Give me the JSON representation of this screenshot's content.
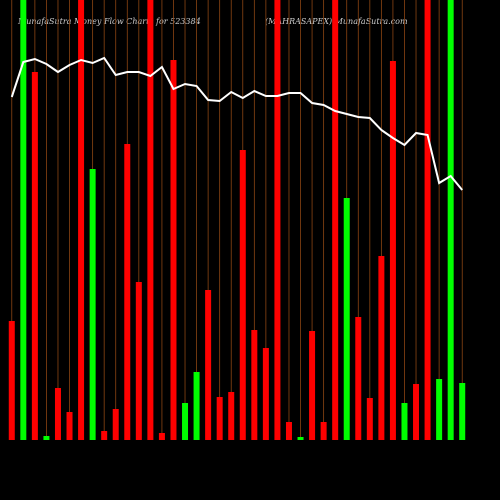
{
  "chart_data": {
    "type": "bar",
    "title": "MunafaSutra  Money Flow  Charts for 523384",
    "subtitle": "(MAHRASAPEX) MunafaSutra.com",
    "categories": [
      null,
      null,
      null,
      null,
      null,
      null,
      null,
      null,
      null,
      null,
      null,
      null,
      null,
      null,
      null,
      null,
      null,
      null,
      null,
      null,
      null,
      null,
      null,
      null,
      null,
      null,
      null,
      null,
      null,
      null,
      null,
      null,
      null,
      null,
      null,
      null,
      null,
      null,
      null,
      null
    ],
    "values": [
      119,
      440,
      368,
      4,
      52,
      28,
      440,
      271,
      9,
      31,
      296,
      158,
      440,
      7,
      380,
      37,
      68,
      150,
      43,
      48,
      290,
      110,
      92,
      440,
      18,
      3,
      109,
      18,
      440,
      242,
      123,
      42,
      184,
      379,
      37,
      56,
      440,
      61,
      440,
      57
    ],
    "colors": [
      "#ff0000",
      "#00ff00",
      "#ff0000",
      "#00ff00",
      "#ff0000",
      "#ff0000",
      "#ff0000",
      "#00ff00",
      "#ff0000",
      "#ff0000",
      "#ff0000",
      "#ff0000",
      "#ff0000",
      "#ff0000",
      "#ff0000",
      "#00ff00",
      "#00ff00",
      "#ff0000",
      "#ff0000",
      "#ff0000",
      "#ff0000",
      "#ff0000",
      "#ff0000",
      "#ff0000",
      "#ff0000",
      "#00ff00",
      "#ff0000",
      "#ff0000",
      "#ff0000",
      "#00ff00",
      "#ff0000",
      "#ff0000",
      "#ff0000",
      "#ff0000",
      "#00ff00",
      "#ff0000",
      "#ff0000",
      "#00ff00",
      "#00ff00",
      "#00ff00"
    ],
    "line": {
      "color": "#ffffff",
      "values": [
        343,
        378,
        381,
        376,
        368,
        375,
        380,
        377,
        382,
        365,
        368,
        368,
        364,
        373,
        351,
        356,
        354,
        340,
        339,
        348,
        342,
        349,
        344,
        344,
        347,
        347,
        337,
        335,
        329,
        326,
        323,
        322,
        310,
        302,
        295,
        307,
        305,
        257,
        264,
        250
      ]
    },
    "ylim": [
      0,
      440
    ]
  }
}
